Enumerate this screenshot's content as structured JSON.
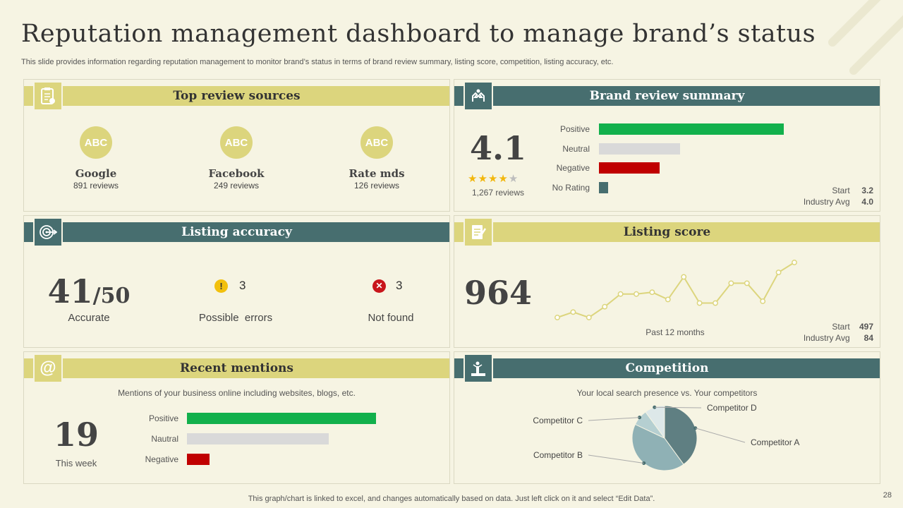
{
  "title": "Reputation management dashboard to manage brand’s status",
  "subtitle": "This slide provides information regarding reputation management to monitor brand’s status in terms of brand review summary, listing score, competition, listing accuracy, etc.",
  "colors": {
    "yellow": "#dcd57d",
    "teal": "#476e6f",
    "green": "#12b04c",
    "grey": "#d9d9d9",
    "red": "#c00000"
  },
  "top_review_sources": {
    "heading": "Top review sources",
    "icon": "clipboard-icon",
    "sources": [
      {
        "badge": "ABC",
        "name": "Google",
        "reviews": "891 reviews"
      },
      {
        "badge": "ABC",
        "name": "Facebook",
        "reviews": "249 reviews"
      },
      {
        "badge": "ABC",
        "name": "Rate mds",
        "reviews": "126 reviews"
      }
    ]
  },
  "brand_review_summary": {
    "heading": "Brand review summary",
    "icon": "hands-icon",
    "rating": "4.1",
    "stars_filled": 4,
    "stars_total": 5,
    "review_count": "1,267 reviews",
    "bars": [
      {
        "label": "Positive",
        "value": 100,
        "color": "#12b04c"
      },
      {
        "label": "Neutral",
        "value": 44,
        "color": "#d9d9d9"
      },
      {
        "label": "Negative",
        "value": 33,
        "color": "#c00000"
      },
      {
        "label": "No Rating",
        "value": 5,
        "color": "#476e6f"
      }
    ],
    "start_label": "Start",
    "start_value": "3.2",
    "industry_label": "Industry Avg",
    "industry_value": "4.0"
  },
  "listing_accuracy": {
    "heading": "Listing accuracy",
    "icon": "target-icon",
    "accurate_value": "41",
    "accurate_total": "/50",
    "accurate_label": "Accurate",
    "errors_value": "3",
    "errors_label": "Possible  errors",
    "notfound_value": "3",
    "notfound_label": "Not found"
  },
  "listing_score": {
    "heading": "Listing score",
    "icon": "notepad-icon",
    "score": "964",
    "trend": [
      2,
      8,
      2,
      14,
      28,
      28,
      30,
      22,
      47,
      18,
      18,
      40,
      40,
      20,
      52,
      63
    ],
    "period_label": "Past 12 months",
    "start_label": "Start",
    "start_value": "497",
    "industry_label": "Industry Avg",
    "industry_value": "84"
  },
  "recent_mentions": {
    "heading": "Recent mentions",
    "icon": "at-sign-icon",
    "description": "Mentions of your business online including websites, blogs, etc.",
    "count": "19",
    "count_label": "This week",
    "bars": [
      {
        "label": "Positive",
        "value": 100,
        "color": "#12b04c"
      },
      {
        "label": "Nautral",
        "value": 75,
        "color": "#d9d9d9"
      },
      {
        "label": "Negative",
        "value": 12,
        "color": "#c00000"
      }
    ]
  },
  "competition": {
    "heading": "Competition",
    "icon": "podium-icon",
    "description": "Your local search presence vs. Your competitors",
    "chart_data": {
      "type": "pie",
      "title": "",
      "slices": [
        {
          "name": "Competitor A",
          "value": 40,
          "color": "#5f7f82"
        },
        {
          "name": "Competitor B",
          "value": 42,
          "color": "#8fb1b5"
        },
        {
          "name": "Competitor C",
          "value": 8,
          "color": "#b5cfd1"
        },
        {
          "name": "Competitor D",
          "value": 10,
          "color": "#dde8e9"
        }
      ]
    }
  },
  "footer": "This graph/chart is linked to excel,  and changes automatically based on data. Just left click on it and select “Edit Data”.",
  "page_number": "28"
}
